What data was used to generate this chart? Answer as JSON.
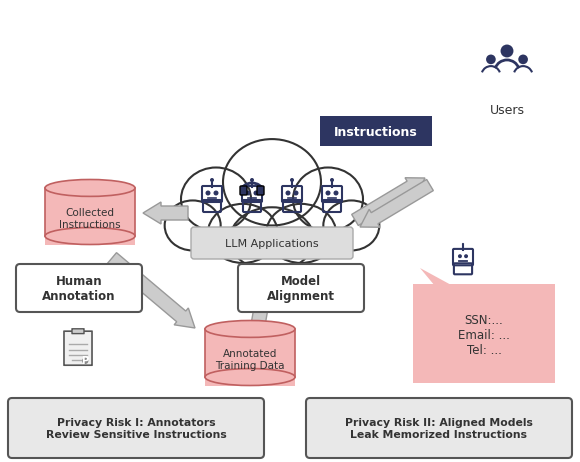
{
  "bg_color": "#ffffff",
  "cloud_color": "#ffffff",
  "cloud_edge": "#333333",
  "pink_color": "#f4b8b8",
  "pink_edge": "#c06060",
  "dark_navy": "#2d3561",
  "arrow_color": "#cccccc",
  "arrow_edge": "#999999",
  "box_fill": "#e8e8e8",
  "box_edge": "#555555",
  "risk_box_fill": "#e8e8e8",
  "risk_box_edge": "#555555",
  "instructions_box_fill": "#2d3561",
  "instructions_text_color": "#ffffff",
  "llm_label": "LLM Applications",
  "collected_label": "Collected\nInstructions",
  "annotated_label": "Annotated\nTraining Data",
  "human_annotation_label": "Human\nAnnotation",
  "model_alignment_label": "Model\nAlignment",
  "instructions_label": "Instructions",
  "users_label": "Users",
  "risk1_label": "Privacy Risk I: Annotators\nReview Sensitive Instructions",
  "risk2_label": "Privacy Risk II: Aligned Models\nLeak Memorized Instructions",
  "ssn_text": "SSN:...\nEmail: ...\nTel: ..."
}
